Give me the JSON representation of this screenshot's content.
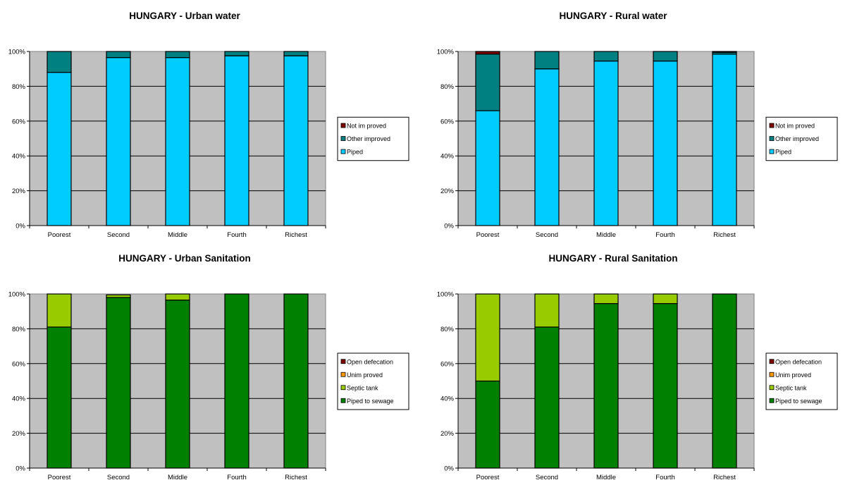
{
  "colors": {
    "plot_background": "#c0c0c0",
    "piped": "#00ccff",
    "other_improved": "#008080",
    "not_improved": "#800000",
    "piped_to_sewage": "#008000",
    "septic_tank": "#99cc00",
    "unimproved": "#ff9900",
    "open_defecation": "#800000"
  },
  "chart_data": [
    {
      "type": "bar",
      "stacked": true,
      "title": "HUNGARY  -  Urban water",
      "categories": [
        "Poorest",
        "Second",
        "Middle",
        "Fourth",
        "Richest"
      ],
      "yticks": [
        "0%",
        "20%",
        "40%",
        "60%",
        "80%",
        "100%"
      ],
      "ylim": [
        0,
        100
      ],
      "legend_position": "right",
      "series": [
        {
          "name": "Piped",
          "color": "#00ccff",
          "values": [
            88,
            96.5,
            96.5,
            97.5,
            97.5
          ]
        },
        {
          "name": "Other improved",
          "color": "#008080",
          "values": [
            12,
            3.5,
            3.5,
            2.5,
            2.5
          ]
        },
        {
          "name": "Not improved",
          "color": "#800000",
          "values": [
            0,
            0,
            0,
            0,
            0
          ]
        }
      ],
      "legend": [
        "Not im proved",
        "Other improved",
        "Piped"
      ]
    },
    {
      "type": "bar",
      "stacked": true,
      "title": "HUNGARY  -  Rural water",
      "categories": [
        "Poorest",
        "Second",
        "Middle",
        "Fourth",
        "Richest"
      ],
      "yticks": [
        "0%",
        "20%",
        "40%",
        "60%",
        "80%",
        "100%"
      ],
      "ylim": [
        0,
        100
      ],
      "legend_position": "right",
      "series": [
        {
          "name": "Piped",
          "color": "#00ccff",
          "values": [
            66,
            90,
            94.5,
            94.5,
            98.5
          ]
        },
        {
          "name": "Other improved",
          "color": "#008080",
          "values": [
            32.5,
            10,
            5.5,
            5.5,
            1
          ]
        },
        {
          "name": "Not improved",
          "color": "#800000",
          "values": [
            1.5,
            0,
            0,
            0,
            0.5
          ]
        }
      ],
      "legend": [
        "Not im proved",
        "Other improved",
        "Piped"
      ]
    },
    {
      "type": "bar",
      "stacked": true,
      "title": "HUNGARY  -  Urban Sanitation",
      "categories": [
        "Poorest",
        "Second",
        "Middle",
        "Fourth",
        "Richest"
      ],
      "yticks": [
        "0%",
        "20%",
        "40%",
        "60%",
        "80%",
        "100%"
      ],
      "ylim": [
        0,
        100
      ],
      "legend_position": "right",
      "series": [
        {
          "name": "Piped to sewage",
          "color": "#008000",
          "values": [
            81,
            98,
            96.5,
            100,
            100
          ]
        },
        {
          "name": "Septic tank",
          "color": "#99cc00",
          "values": [
            19,
            1.5,
            3.5,
            0,
            0
          ]
        },
        {
          "name": "Unimproved",
          "color": "#ff9900",
          "values": [
            0,
            0,
            0,
            0,
            0
          ]
        },
        {
          "name": "Open defecation",
          "color": "#800000",
          "values": [
            0,
            0,
            0,
            0,
            0
          ]
        }
      ],
      "legend": [
        "Open defecation",
        "Unim proved",
        "Septic tank",
        "Piped to sewage"
      ]
    },
    {
      "type": "bar",
      "stacked": true,
      "title": "HUNGARY  -  Rural Sanitation",
      "categories": [
        "Poorest",
        "Second",
        "Middle",
        "Fourth",
        "Richest"
      ],
      "yticks": [
        "0%",
        "20%",
        "40%",
        "60%",
        "80%",
        "100%"
      ],
      "ylim": [
        0,
        100
      ],
      "legend_position": "right",
      "series": [
        {
          "name": "Piped to sewage",
          "color": "#008000",
          "values": [
            50,
            81,
            94.5,
            94.5,
            100
          ]
        },
        {
          "name": "Septic tank",
          "color": "#99cc00",
          "values": [
            50,
            19,
            5.5,
            5.5,
            0
          ]
        },
        {
          "name": "Unimproved",
          "color": "#ff9900",
          "values": [
            0,
            0,
            0,
            0,
            0
          ]
        },
        {
          "name": "Open defecation",
          "color": "#800000",
          "values": [
            0,
            0,
            0,
            0,
            0
          ]
        }
      ],
      "legend": [
        "Open defecation",
        "Unim proved",
        "Septic tank",
        "Piped to sewage"
      ]
    }
  ]
}
